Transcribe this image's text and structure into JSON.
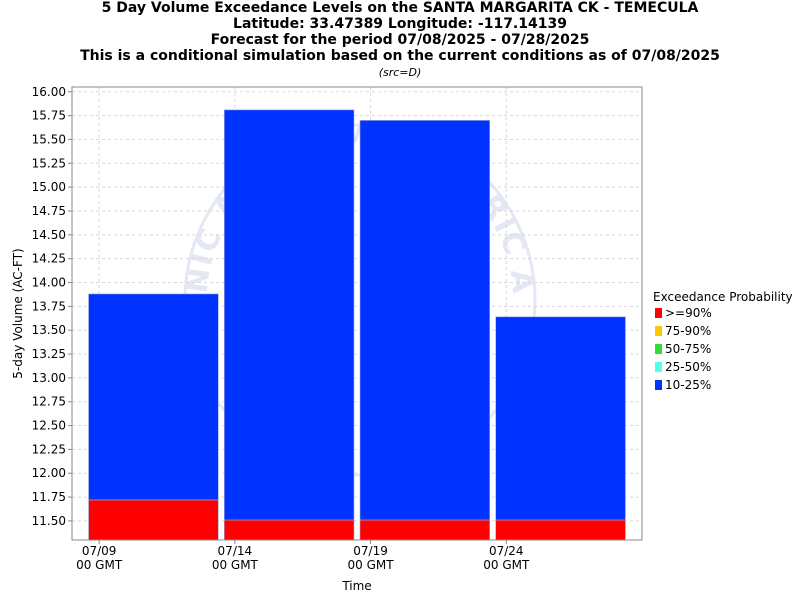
{
  "header": {
    "title_lines": [
      "5 Day Volume Exceedance Levels on the SANTA MARGARITA CK - TEMECULA",
      "Latitude: 33.47389 Longitude: -117.14139",
      "Forecast for the period 07/08/2025 - 07/28/2025",
      "This is a conditional simulation based on the current conditions as of 07/08/2025"
    ],
    "source_note": "(src=D)"
  },
  "chart_data": {
    "type": "bar",
    "stacked": true,
    "xlabel": "Time",
    "ylabel": "5-day Volume (AC-FT)",
    "ylim": [
      11.3,
      16.05
    ],
    "y_ticks": [
      "11.50",
      "11.75",
      "12.00",
      "12.25",
      "12.50",
      "12.75",
      "13.00",
      "13.25",
      "13.50",
      "13.75",
      "14.00",
      "14.25",
      "14.50",
      "14.75",
      "15.00",
      "15.25",
      "15.50",
      "15.75",
      "16.00"
    ],
    "x_ticks": [
      {
        "line1": "07/09",
        "line2": "00 GMT"
      },
      {
        "line1": "07/14",
        "line2": "00 GMT"
      },
      {
        "line1": "07/19",
        "line2": "00 GMT"
      },
      {
        "line1": "07/24",
        "line2": "00 GMT"
      }
    ],
    "grid": true,
    "bars": [
      {
        "period_start": "07/09",
        "segments": [
          {
            "level": ">=90%",
            "from": 11.3,
            "to": 11.72
          },
          {
            "level": "10-25%",
            "from": 11.72,
            "to": 13.88
          }
        ]
      },
      {
        "period_start": "07/14",
        "segments": [
          {
            "level": ">=90%",
            "from": 11.3,
            "to": 11.51
          },
          {
            "level": "10-25%",
            "from": 11.51,
            "to": 15.81
          }
        ]
      },
      {
        "period_start": "07/19",
        "segments": [
          {
            "level": ">=90%",
            "from": 11.3,
            "to": 11.51
          },
          {
            "level": "10-25%",
            "from": 11.51,
            "to": 15.7
          }
        ]
      },
      {
        "period_start": "07/24",
        "segments": [
          {
            "level": ">=90%",
            "from": 11.3,
            "to": 11.51
          },
          {
            "level": "10-25%",
            "from": 11.51,
            "to": 13.64
          }
        ]
      }
    ],
    "legend": {
      "title": "Exceedance Probability",
      "placement": "right",
      "entries": [
        {
          "label": ">=90%",
          "color": "#ff0000"
        },
        {
          "label": "75-90%",
          "color": "#ffc800"
        },
        {
          "label": "50-75%",
          "color": "#33dd33"
        },
        {
          "label": "25-50%",
          "color": "#55ffee"
        },
        {
          "label": "10-25%",
          "color": "#0033ff"
        }
      ]
    },
    "watermark": "NATIONAL OCEANIC AND ATMOSPHERIC ADMINISTRATION"
  }
}
